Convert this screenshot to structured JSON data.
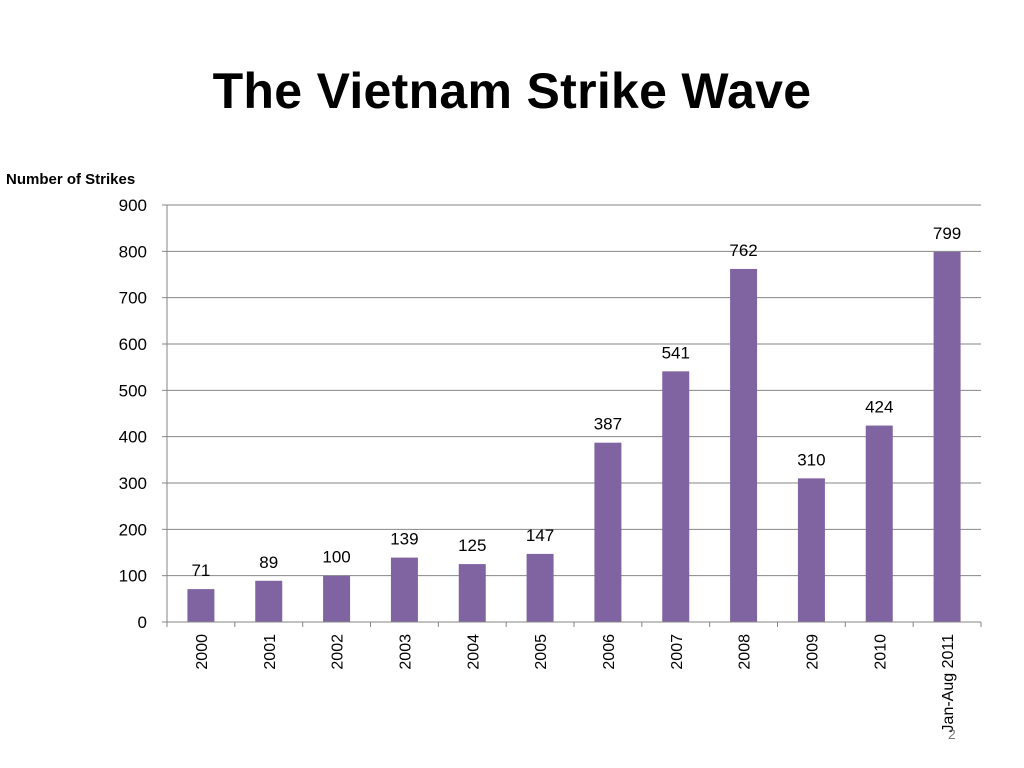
{
  "slide": {
    "title": "The Vietnam Strike Wave",
    "page_number": "2"
  },
  "colors": {
    "bar": "#8064A2",
    "grid": "#868686",
    "axis": "#868686",
    "text": "#000000"
  },
  "chart_data": {
    "type": "bar",
    "title": "",
    "xlabel": "",
    "ylabel": "Number of Strikes",
    "categories": [
      "2000",
      "2001",
      "2002",
      "2003",
      "2004",
      "2005",
      "2006",
      "2007",
      "2008",
      "2009",
      "2010",
      "Jan-Aug 2011"
    ],
    "values": [
      71,
      89,
      100,
      139,
      125,
      147,
      387,
      541,
      762,
      310,
      424,
      799
    ],
    "data_labels": [
      "71",
      "89",
      "100",
      "139",
      "125",
      "147",
      "387",
      "541",
      "762",
      "310",
      "424",
      "799"
    ],
    "ylim": [
      0,
      900
    ],
    "y_ticks": [
      0,
      100,
      200,
      300,
      400,
      500,
      600,
      700,
      800,
      900
    ],
    "y_tick_labels": [
      "0",
      "100",
      "200",
      "300",
      "400",
      "500",
      "600",
      "700",
      "800",
      "900"
    ],
    "grid": true,
    "legend": "none",
    "x_tick_label_orientation": "vertical"
  }
}
